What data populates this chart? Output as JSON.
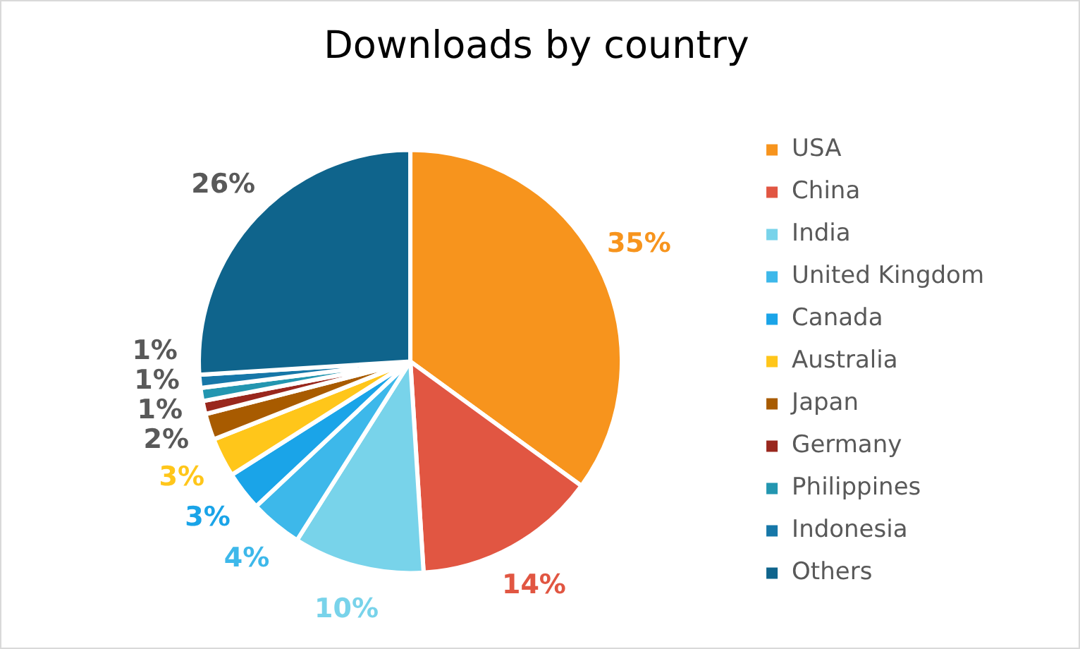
{
  "chart_data": {
    "type": "pie",
    "title": "Downloads by country",
    "categories": [
      "USA",
      "China",
      "India",
      "United Kingdom",
      "Canada",
      "Australia",
      "Japan",
      "Germany",
      "Philippines",
      "Indonesia",
      "Others"
    ],
    "values": [
      35,
      14,
      10,
      4,
      3,
      3,
      2,
      1,
      1,
      1,
      26
    ],
    "colors": [
      "#f7941d",
      "#e15642",
      "#78d3ea",
      "#3db8ea",
      "#1aa4e8",
      "#ffc61a",
      "#a85b00",
      "#99271d",
      "#2396b0",
      "#1677a8",
      "#0f648c"
    ],
    "value_labels": [
      "35%",
      "14%",
      "10%",
      "4%",
      "3%",
      "3%",
      "2%",
      "1%",
      "1%",
      "1%",
      "26%"
    ],
    "legend": "right"
  }
}
